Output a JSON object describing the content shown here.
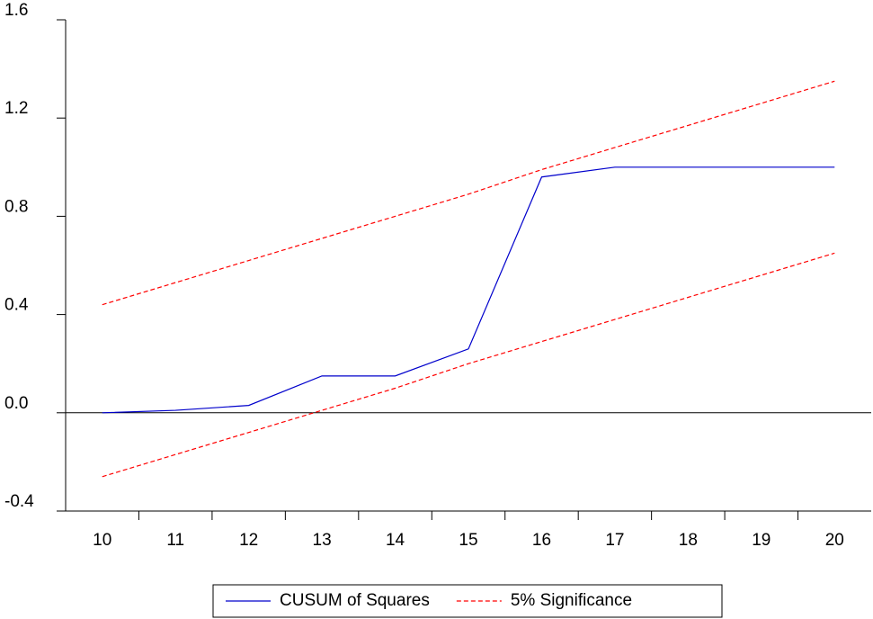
{
  "chart_data": {
    "type": "line",
    "categories": [
      "10",
      "11",
      "12",
      "13",
      "14",
      "15",
      "16",
      "17",
      "18",
      "19",
      "20"
    ],
    "series": [
      {
        "name": "CUSUM of Squares",
        "color": "#0000cc",
        "dash": false,
        "values": [
          0.0,
          0.01,
          0.03,
          0.15,
          0.15,
          0.26,
          0.96,
          1.0,
          1.0,
          1.0,
          1.0
        ]
      },
      {
        "name": "5% Significance",
        "color": "#ff0000",
        "dash": true,
        "values": [
          0.44,
          0.53,
          0.62,
          0.71,
          0.8,
          0.89,
          0.99,
          1.08,
          1.17,
          1.26,
          1.35
        ]
      },
      {
        "color": "#ff0000",
        "dash": true,
        "values": [
          -0.26,
          -0.17,
          -0.08,
          0.01,
          0.1,
          0.2,
          0.29,
          0.38,
          0.47,
          0.56,
          0.65
        ]
      }
    ],
    "ylim": [
      -0.4,
      1.6
    ],
    "yticks": [
      -0.4,
      {
        "value": 0,
        "label": "0.0"
      },
      0.4,
      0.8,
      1.2,
      1.6
    ],
    "zero_line": true,
    "legend": "bottom"
  }
}
